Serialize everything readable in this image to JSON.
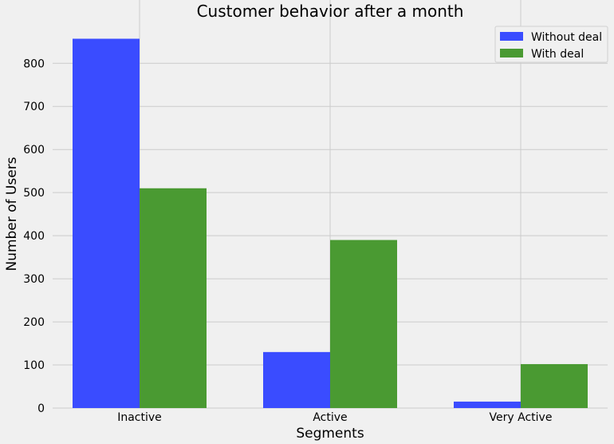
{
  "chart_data": {
    "type": "bar",
    "title": "Customer behavior after a month",
    "xlabel": "Segments",
    "ylabel": "Number of Users",
    "categories": [
      "Inactive",
      "Active",
      "Very Active"
    ],
    "series": [
      {
        "name": "Without deal",
        "color": "#3a4cff",
        "values": [
          857,
          130,
          15
        ]
      },
      {
        "name": "With deal",
        "color": "#4a9a32",
        "values": [
          510,
          390,
          102
        ]
      }
    ],
    "ylim": [
      0,
      895
    ],
    "yticks": [
      0,
      100,
      200,
      300,
      400,
      500,
      600,
      700,
      800
    ],
    "grid": true,
    "legend_position": "top-right"
  }
}
